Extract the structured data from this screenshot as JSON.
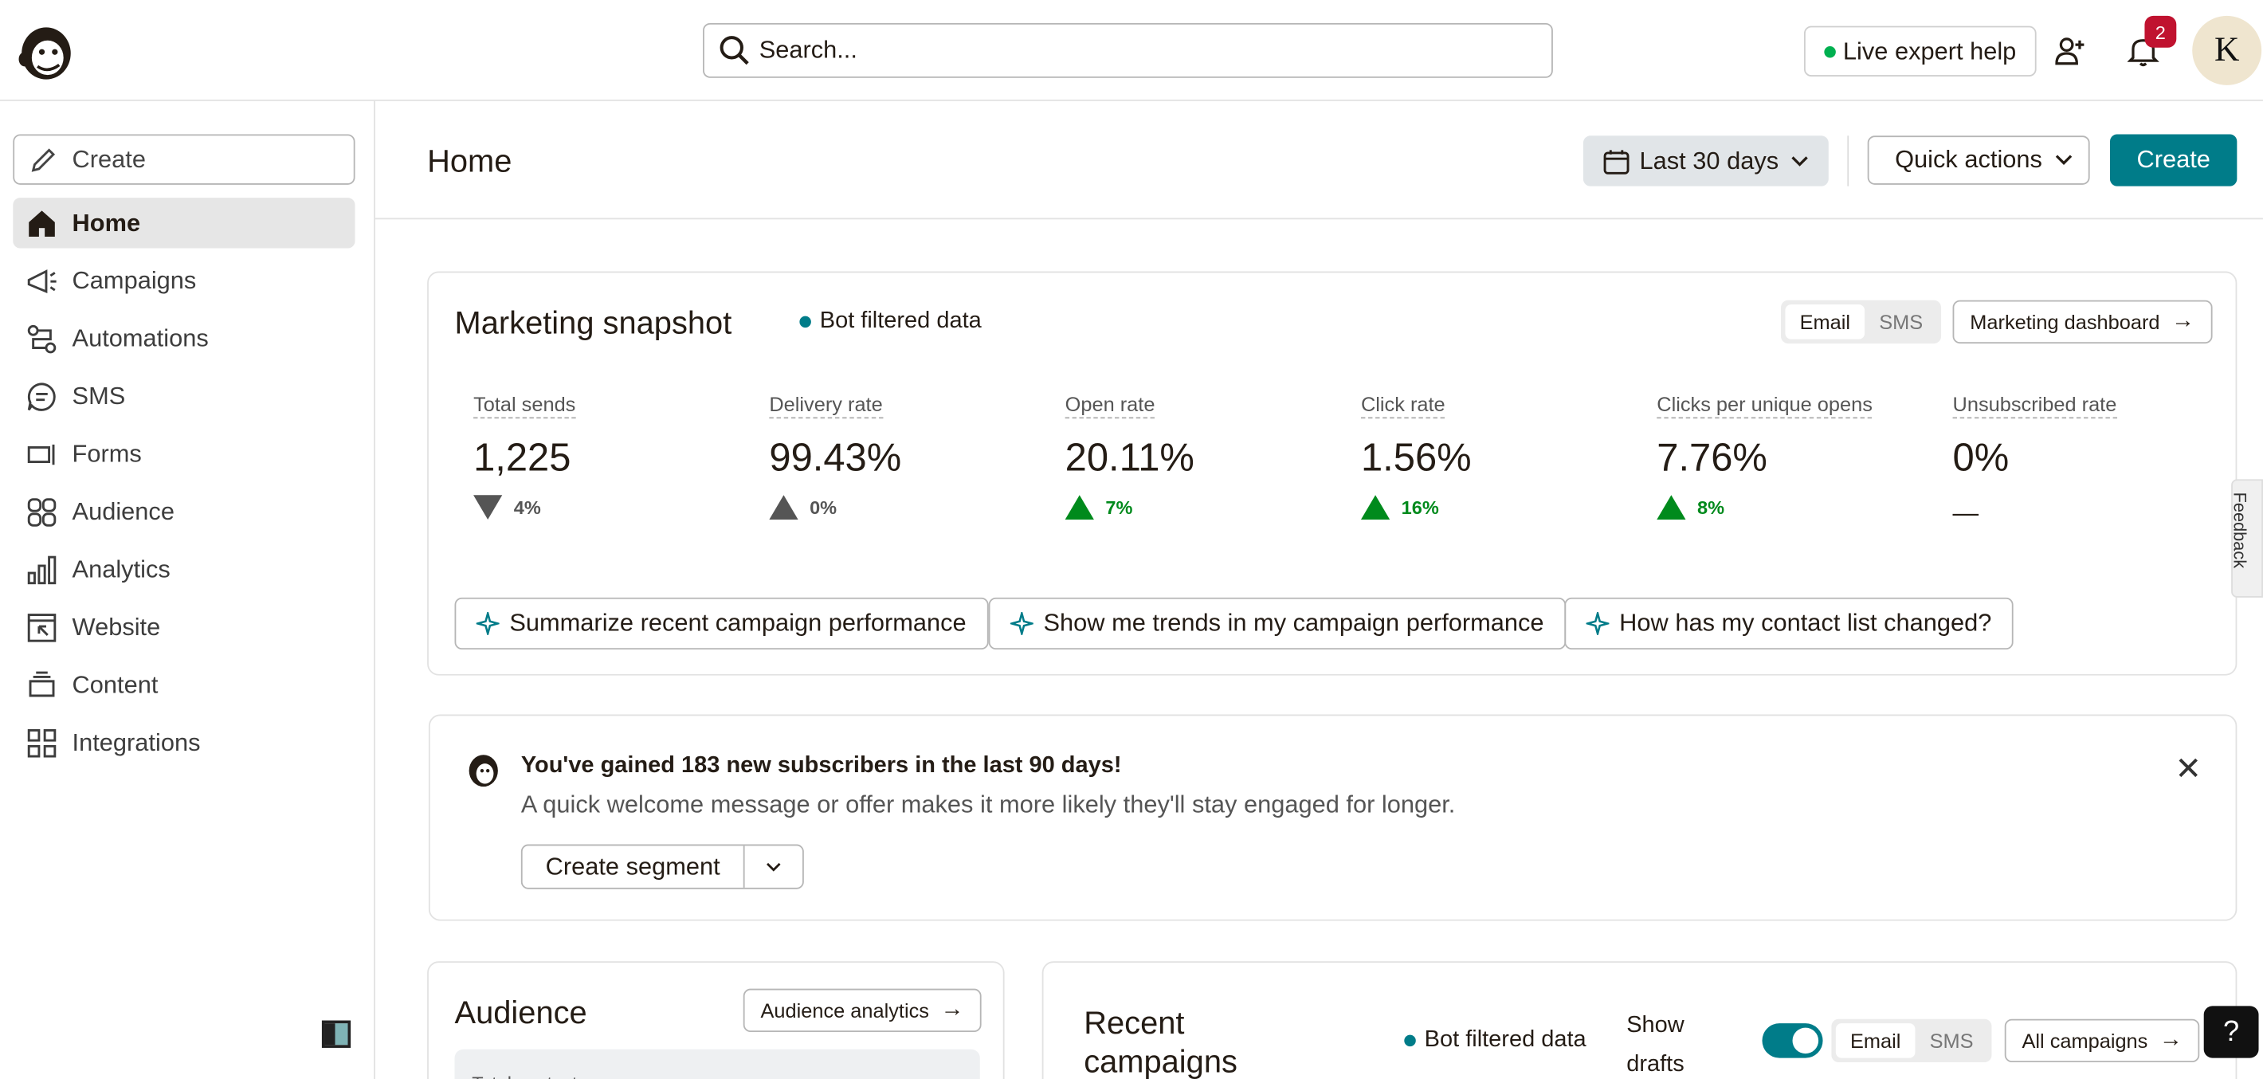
{
  "header": {
    "search_placeholder": "Search...",
    "live_help": "Live expert help",
    "notifications_count": "2",
    "avatar_initial": "K"
  },
  "sidebar": {
    "create_label": "Create",
    "items": [
      {
        "label": "Home",
        "icon": "home-icon",
        "active": true
      },
      {
        "label": "Campaigns",
        "icon": "megaphone-icon"
      },
      {
        "label": "Automations",
        "icon": "automations-icon"
      },
      {
        "label": "SMS",
        "icon": "sms-icon"
      },
      {
        "label": "Forms",
        "icon": "forms-icon"
      },
      {
        "label": "Audience",
        "icon": "audience-icon"
      },
      {
        "label": "Analytics",
        "icon": "analytics-icon"
      },
      {
        "label": "Website",
        "icon": "website-icon"
      },
      {
        "label": "Content",
        "icon": "content-icon"
      },
      {
        "label": "Integrations",
        "icon": "integrations-icon"
      }
    ]
  },
  "page": {
    "title": "Home",
    "date_range": "Last 30 days",
    "quick_actions": "Quick actions",
    "create": "Create"
  },
  "snapshot": {
    "title": "Marketing snapshot",
    "bot_filtered": "Bot filtered data",
    "toggle_email": "Email",
    "toggle_sms": "SMS",
    "dashboard_link": "Marketing dashboard",
    "metrics": [
      {
        "label": "Total sends",
        "value": "1,225",
        "change": "4%",
        "trend": "down"
      },
      {
        "label": "Delivery rate",
        "value": "99.43%",
        "change": "0%",
        "trend": "flat"
      },
      {
        "label": "Open rate",
        "value": "20.11%",
        "change": "7%",
        "trend": "up"
      },
      {
        "label": "Click rate",
        "value": "1.56%",
        "change": "16%",
        "trend": "up"
      },
      {
        "label": "Clicks per unique opens",
        "value": "7.76%",
        "change": "8%",
        "trend": "up"
      },
      {
        "label": "Unsubscribed rate",
        "value": "0%",
        "change": "—",
        "trend": "none"
      }
    ],
    "prompts": [
      "Summarize recent campaign performance",
      "Show me trends in my campaign performance",
      "How has my contact list changed?"
    ]
  },
  "notice": {
    "heading": "You've gained 183 new subscribers in the last 90 days!",
    "body": "A quick welcome message or offer makes it more likely they'll stay engaged for longer.",
    "button": "Create segment"
  },
  "audience": {
    "title": "Audience",
    "link": "Audience analytics",
    "inner_label": "Total contacts"
  },
  "recent": {
    "title": "Recent campaigns",
    "bot_filtered": "Bot filtered data",
    "show_drafts": "Show drafts",
    "toggle_email": "Email",
    "toggle_sms": "SMS",
    "link": "All campaigns"
  },
  "misc": {
    "feedback": "Feedback",
    "help": "?"
  },
  "colors": {
    "brand": "#007c89",
    "positive": "#008a1c",
    "badge": "#c0122f"
  }
}
